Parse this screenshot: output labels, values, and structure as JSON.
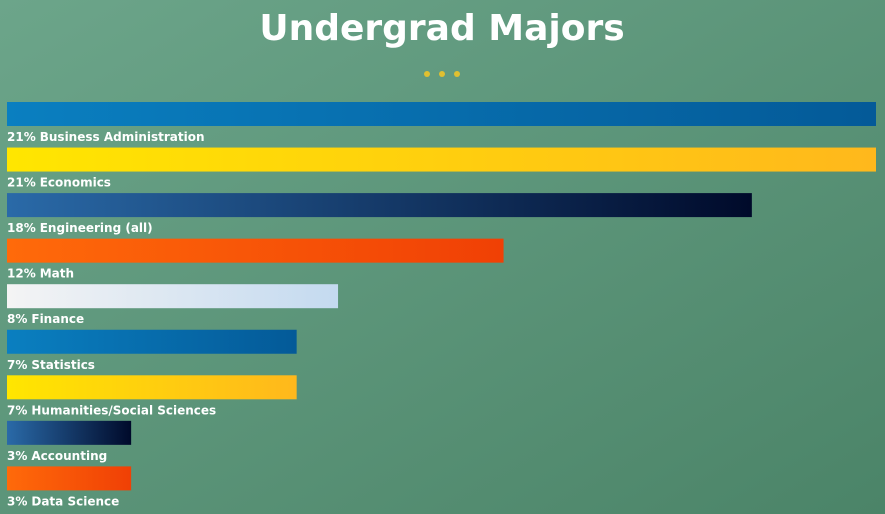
{
  "chart_data": {
    "type": "hbar",
    "title": "Undergrad Majors",
    "categories": [
      "Business Administration",
      "Economics",
      "Engineering (all)",
      "Math",
      "Finance",
      "Statistics",
      "Humanities/Social Sciences",
      "Accounting",
      "Data Science"
    ],
    "values": [
      21,
      21,
      18,
      12,
      8,
      7,
      7,
      3,
      3
    ],
    "value_labels": [
      "21%",
      "21%",
      "18%",
      "12%",
      "8%",
      "7%",
      "7%",
      "3%",
      "3%"
    ],
    "colors": [
      [
        "#0a7fc0",
        "#045a98"
      ],
      [
        "#ffe600",
        "#ffb81c"
      ],
      [
        "#2a6aa8",
        "#000a2a"
      ],
      [
        "#ff6a0a",
        "#f04005"
      ],
      [
        "#f4f4f4",
        "#c4daf0"
      ],
      [
        "#0a7fc0",
        "#045a98"
      ],
      [
        "#ffe600",
        "#ffb81c"
      ],
      [
        "#2a6aa8",
        "#000a2a"
      ],
      [
        "#ff6a0a",
        "#f04005"
      ]
    ]
  }
}
